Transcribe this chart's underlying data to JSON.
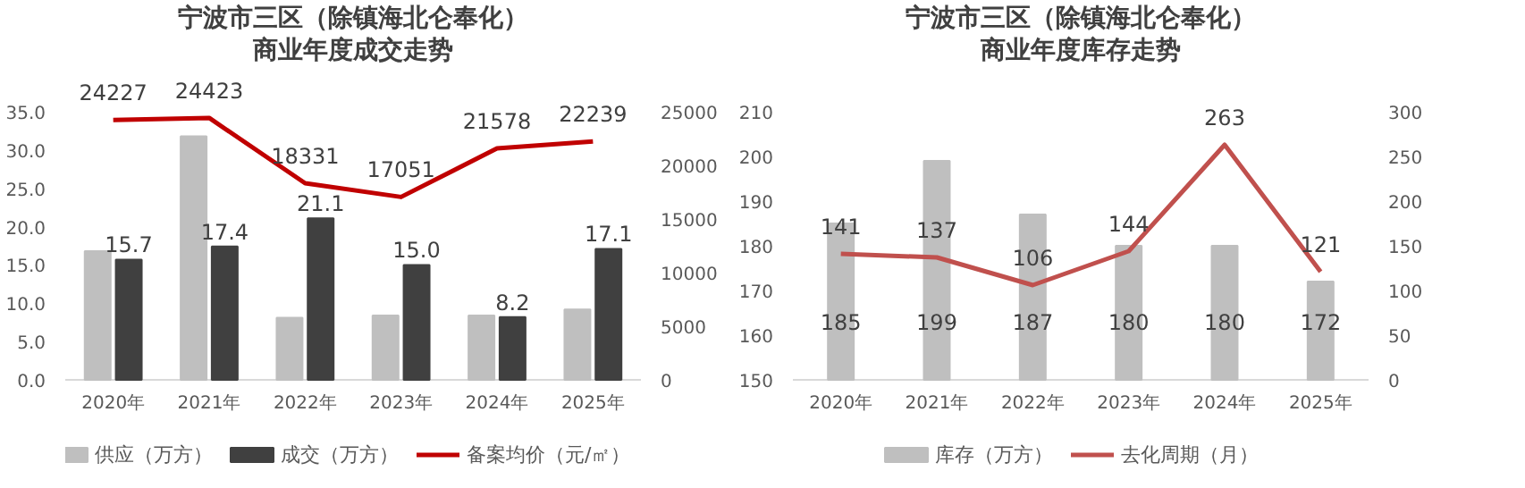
{
  "chart_data": [
    {
      "type": "bar",
      "title": "宁波市三区（除镇海北仑奉化）",
      "subtitle": "商业年度成交走势",
      "categories": [
        "2020年",
        "2021年",
        "2022年",
        "2023年",
        "2024年",
        "2025年"
      ],
      "series": [
        {
          "name": "供应（万方）",
          "color": "#bfbfbf",
          "values": [
            16.8,
            31.8,
            8.1,
            8.4,
            8.4,
            9.2
          ]
        },
        {
          "name": "成交（万方）",
          "color": "#404040",
          "values": [
            15.7,
            17.4,
            21.1,
            15.0,
            8.2,
            17.1
          ],
          "value_labels": [
            "15.7",
            "17.4",
            "21.1",
            "15.0",
            "8.2",
            "17.1"
          ]
        },
        {
          "name": "备案均价（元/㎡）",
          "type": "line",
          "axis": "y2",
          "color": "#c00000",
          "values": [
            24227,
            24423,
            18331,
            17051,
            21578,
            22239
          ],
          "value_labels": [
            "24227",
            "24423",
            "18331",
            "17051",
            "21578",
            "22239"
          ]
        }
      ],
      "ylim": [
        0,
        35
      ],
      "yticks": [
        {
          "value": 0,
          "label": "0.0"
        },
        {
          "value": 5,
          "label": "5.0"
        },
        {
          "value": 10,
          "label": "10.0"
        },
        {
          "value": 15,
          "label": "15.0"
        },
        {
          "value": 20,
          "label": "20.0"
        },
        {
          "value": 25,
          "label": "25.0"
        },
        {
          "value": 30,
          "label": "30.0"
        },
        {
          "value": 35,
          "label": "35.0"
        }
      ],
      "y2lim": [
        0,
        25000
      ],
      "y2ticks": [
        0,
        5000,
        10000,
        15000,
        20000,
        25000
      ],
      "grid": false,
      "legend": "bottom",
      "line_style": "solid",
      "marker": "none"
    },
    {
      "type": "bar",
      "title": "宁波市三区（除镇海北仑奉化）",
      "subtitle": "商业年度库存走势",
      "categories": [
        "2020年",
        "2021年",
        "2022年",
        "2023年",
        "2024年",
        "2025年"
      ],
      "series": [
        {
          "name": "库存（万方）",
          "color": "#bfbfbf",
          "values": [
            185,
            199,
            187,
            180,
            180,
            172
          ]
        },
        {
          "name": "去化周期（月）",
          "type": "line",
          "axis": "y2",
          "color": "#c0504d",
          "values": [
            141,
            137,
            106,
            144,
            263,
            121
          ]
        }
      ],
      "ylim": [
        150,
        210
      ],
      "yticks": [
        150,
        160,
        170,
        180,
        190,
        200,
        210
      ],
      "y2lim": [
        0,
        300
      ],
      "y2ticks": [
        0,
        50,
        100,
        150,
        200,
        250,
        300
      ],
      "grid": false,
      "legend": "bottom",
      "line_style": "solid",
      "marker": "none",
      "data_labels": true
    }
  ]
}
